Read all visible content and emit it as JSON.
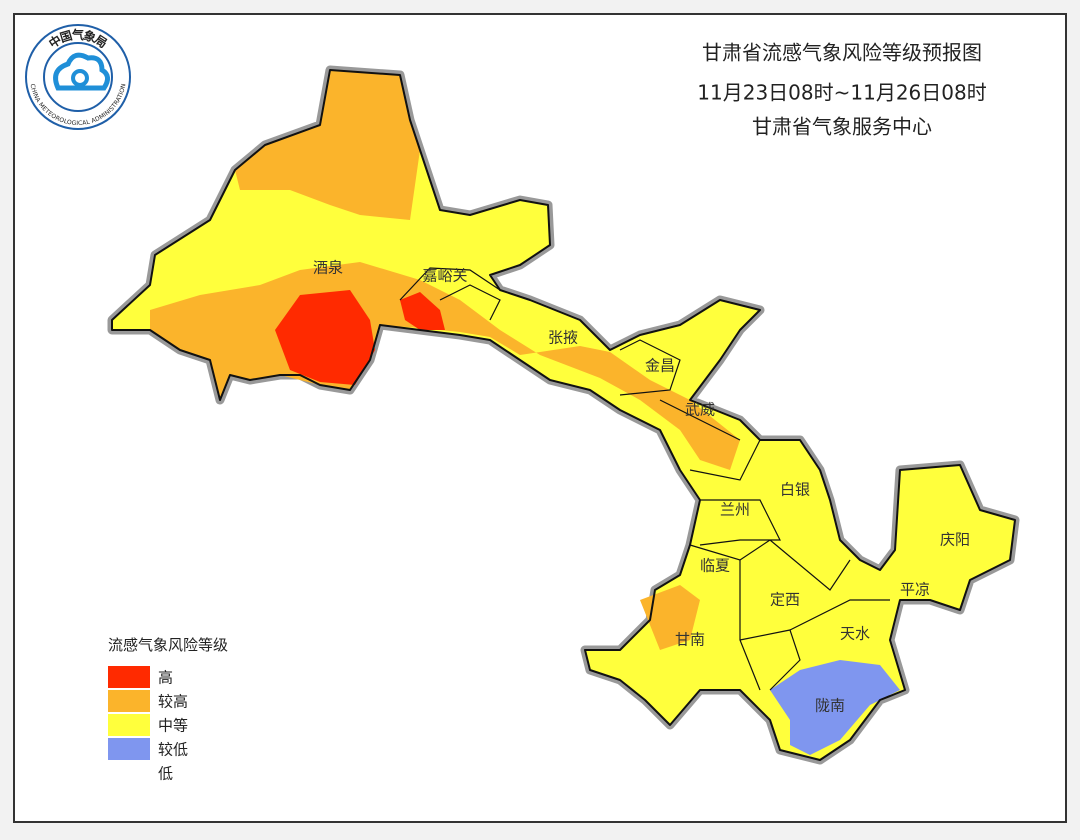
{
  "header": {
    "title": "甘肃省流感气象风险等级预报图",
    "period": "11月23日08时~11月26日08时",
    "issuer": "甘肃省气象服务中心"
  },
  "logo": {
    "name": "中国气象局",
    "ring": "CHINA METEOROLOGICAL ADMINISTRATION"
  },
  "cities": [
    "酒泉",
    "嘉峪关",
    "张掖",
    "金昌",
    "武威",
    "白银",
    "兰州",
    "庆阳",
    "临夏",
    "平凉",
    "定西",
    "甘南",
    "天水",
    "陇南"
  ],
  "legend": {
    "title": "流感气象风险等级",
    "items": [
      {
        "label": "高",
        "color": "#ff2a00"
      },
      {
        "label": "较高",
        "color": "#fbb42b"
      },
      {
        "label": "中等",
        "color": "#ffff3c"
      },
      {
        "label": "较低",
        "color": "#7f96ef"
      },
      {
        "label": "低",
        "color": "#ffffff"
      }
    ]
  }
}
